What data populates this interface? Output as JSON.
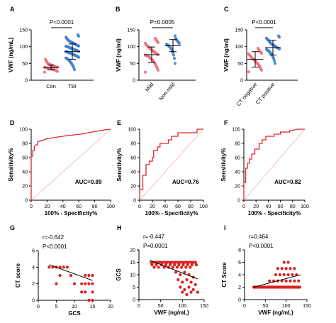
{
  "colors": {
    "con": "#f07080",
    "tbi": "#3f7fd0",
    "roc": "#e0262a",
    "reference": "#f1b0b0",
    "scatter": "#dd2020",
    "axis": "#000000",
    "mean_line": "#000000"
  },
  "chart_data": [
    {
      "panel": "A",
      "type": "scatter",
      "categories": [
        "Con",
        "TBI"
      ],
      "ylabel": "VWF (ng/mL)",
      "ylim": [
        0,
        150
      ],
      "yticks": [
        0,
        50,
        100,
        150
      ],
      "pvalue": "P<0.0001",
      "groups": [
        {
          "category": "Con",
          "mean": 38,
          "sd": 7,
          "values": [
            24,
            26,
            28,
            29,
            30,
            31,
            31,
            32,
            33,
            33,
            34,
            34,
            35,
            35,
            36,
            36,
            37,
            37,
            38,
            38,
            39,
            39,
            40,
            40,
            41,
            42,
            42,
            43,
            44,
            45,
            46,
            47,
            48,
            50,
            52,
            55,
            58,
            62
          ]
        },
        {
          "category": "TBI",
          "mean": 85,
          "sd": 23,
          "values": [
            32,
            38,
            42,
            46,
            50,
            52,
            55,
            58,
            60,
            62,
            63,
            65,
            66,
            68,
            70,
            71,
            72,
            73,
            74,
            75,
            76,
            77,
            78,
            79,
            80,
            80,
            81,
            82,
            83,
            84,
            85,
            85,
            86,
            87,
            88,
            89,
            90,
            90,
            91,
            92,
            93,
            94,
            95,
            95,
            96,
            97,
            98,
            99,
            100,
            100,
            101,
            102,
            103,
            104,
            105,
            106,
            107,
            108,
            110,
            111,
            112,
            113,
            114,
            115,
            116,
            118,
            120,
            122,
            125,
            128,
            131,
            135
          ]
        }
      ]
    },
    {
      "panel": "B",
      "type": "scatter",
      "categories": [
        "Mild",
        "Non-mild"
      ],
      "ylabel": "VWF (ng/ml)",
      "ylim": [
        0,
        150
      ],
      "yticks": [
        0,
        50,
        100,
        150
      ],
      "pvalue": "P=0.0005",
      "groups": [
        {
          "category": "Mild",
          "mean": 76,
          "sd": 23,
          "values": [
            24,
            30,
            35,
            40,
            44,
            48,
            52,
            55,
            58,
            60,
            62,
            64,
            66,
            68,
            70,
            71,
            72,
            73,
            74,
            75,
            76,
            78,
            79,
            80,
            82,
            84,
            85,
            86,
            88,
            90,
            92,
            94,
            96,
            98,
            100,
            102,
            104,
            106,
            110,
            112,
            115,
            118,
            120,
            125
          ]
        },
        {
          "category": "Non-mild",
          "mean": 103,
          "sd": 18,
          "values": [
            50,
            65,
            75,
            82,
            88,
            92,
            95,
            98,
            100,
            102,
            104,
            105,
            107,
            110,
            112,
            115,
            118,
            120,
            125,
            132
          ]
        }
      ]
    },
    {
      "panel": "C",
      "type": "scatter",
      "categories": [
        "CT negative",
        "CT positive"
      ],
      "ylabel": "VWF (ng/ml)",
      "ylim": [
        0,
        150
      ],
      "yticks": [
        0,
        50,
        100,
        150
      ],
      "pvalue": "P<0.0001",
      "groups": [
        {
          "category": "CT negative",
          "mean": 62,
          "sd": 23,
          "values": [
            25,
            30,
            34,
            38,
            42,
            45,
            48,
            50,
            53,
            55,
            57,
            60,
            62,
            63,
            65,
            67,
            70,
            72,
            75,
            78,
            80,
            83,
            85,
            88,
            90,
            95
          ]
        },
        {
          "category": "CT positive",
          "mean": 97,
          "sd": 22,
          "values": [
            50,
            58,
            65,
            70,
            74,
            78,
            80,
            83,
            85,
            87,
            88,
            90,
            92,
            93,
            95,
            96,
            97,
            98,
            100,
            101,
            103,
            104,
            105,
            107,
            108,
            110,
            112,
            115,
            118,
            120,
            122,
            125,
            128,
            132
          ]
        }
      ]
    },
    {
      "panel": "D",
      "type": "line",
      "xlabel": "100% - Specificity%",
      "ylabel": "Sensitivity%",
      "xlim": [
        0,
        100
      ],
      "ylim": [
        0,
        100
      ],
      "xticks": [
        0,
        20,
        40,
        60,
        80,
        100
      ],
      "yticks": [
        0,
        20,
        40,
        60,
        80,
        100
      ],
      "auc": "AUC=0.89",
      "x": [
        0,
        0,
        2,
        2,
        4,
        4,
        6,
        8,
        8,
        12,
        16,
        18,
        22,
        28,
        34,
        40,
        46,
        54,
        62,
        72,
        82,
        92,
        100
      ],
      "y": [
        0,
        62,
        62,
        70,
        70,
        76,
        78,
        78,
        82,
        84,
        85,
        86,
        87,
        88,
        89,
        90,
        91,
        92,
        93,
        95,
        97,
        99,
        100
      ]
    },
    {
      "panel": "E",
      "type": "line",
      "xlabel": "100% - Specificity%",
      "ylabel": "Sensitivity%",
      "xlim": [
        0,
        100
      ],
      "ylim": [
        0,
        100
      ],
      "xticks": [
        0,
        20,
        40,
        60,
        80,
        100
      ],
      "yticks": [
        0,
        20,
        40,
        60,
        80,
        100
      ],
      "auc": "AUC=0.76",
      "x": [
        0,
        0,
        5,
        5,
        10,
        10,
        15,
        15,
        20,
        20,
        22,
        22,
        28,
        28,
        32,
        32,
        45,
        45,
        50,
        50,
        60,
        60,
        90,
        90,
        100
      ],
      "y": [
        0,
        15,
        15,
        35,
        35,
        50,
        50,
        55,
        55,
        60,
        60,
        70,
        70,
        75,
        75,
        80,
        80,
        85,
        85,
        90,
        90,
        95,
        95,
        100,
        100
      ]
    },
    {
      "panel": "F",
      "type": "line",
      "xlabel": "100% - Specificity%",
      "ylabel": "Sensitivity%",
      "xlim": [
        0,
        100
      ],
      "ylim": [
        0,
        100
      ],
      "xticks": [
        0,
        20,
        40,
        60,
        80,
        100
      ],
      "yticks": [
        0,
        20,
        40,
        60,
        80,
        100
      ],
      "auc": "AUC=0.82",
      "x": [
        0,
        0,
        3,
        3,
        6,
        6,
        9,
        9,
        13,
        13,
        18,
        18,
        25,
        25,
        30,
        30,
        36,
        36,
        50,
        50,
        60,
        60,
        75,
        75,
        90,
        100
      ],
      "y": [
        0,
        25,
        25,
        45,
        45,
        52,
        52,
        58,
        58,
        65,
        65,
        72,
        72,
        80,
        80,
        85,
        85,
        90,
        90,
        93,
        93,
        96,
        96,
        98,
        100,
        100
      ]
    },
    {
      "panel": "G",
      "type": "scatter",
      "xlabel": "GCS",
      "ylabel": "CT score",
      "xlim": [
        0,
        20
      ],
      "ylim": [
        0,
        6
      ],
      "xticks": [
        0,
        5,
        10,
        15,
        20
      ],
      "yticks": [
        0,
        2,
        4,
        6
      ],
      "r": "r=-0.642",
      "pvalue": "P<0.0001",
      "fit": {
        "x": [
          3,
          15
        ],
        "y": [
          4.3,
          2.4
        ]
      },
      "x": [
        3,
        4,
        5,
        6,
        7,
        8,
        6,
        5,
        9,
        10,
        12,
        13,
        14,
        15,
        13,
        14,
        15,
        12,
        13,
        14,
        15,
        15
      ],
      "y": [
        4,
        4,
        4,
        4,
        4,
        4,
        3,
        2,
        3,
        2,
        2,
        3,
        3,
        2,
        2,
        2,
        1,
        1,
        1,
        0,
        0,
        3
      ]
    },
    {
      "panel": "H",
      "type": "scatter",
      "xlabel": "VWF (ng/mL)",
      "ylabel": "GCS",
      "xlim": [
        0,
        150
      ],
      "ylim": [
        0,
        20
      ],
      "xticks": [
        0,
        50,
        100,
        150
      ],
      "yticks": [
        0,
        5,
        10,
        15,
        20
      ],
      "r": "r=-0.447",
      "pvalue": "P=0.0001",
      "fit": {
        "x": [
          25,
          135
        ],
        "y": [
          15.8,
          8.3
        ]
      },
      "x": [
        28,
        32,
        38,
        42,
        46,
        50,
        55,
        60,
        65,
        70,
        75,
        80,
        85,
        90,
        95,
        100,
        105,
        110,
        115,
        120,
        125,
        130,
        30,
        40,
        52,
        62,
        72,
        82,
        92,
        102,
        112,
        122,
        132,
        35,
        45,
        58,
        68,
        78,
        88,
        98,
        108,
        118,
        85,
        95,
        105,
        115,
        125,
        90,
        100,
        110,
        120,
        130,
        95,
        105,
        115,
        125,
        135,
        100,
        110,
        120
      ],
      "y": [
        15,
        15,
        15,
        15,
        15,
        15,
        15,
        15,
        15,
        15,
        15,
        15,
        15,
        15,
        15,
        15,
        15,
        15,
        15,
        15,
        15,
        15,
        14,
        14,
        14,
        14,
        14,
        14,
        14,
        14,
        14,
        14,
        14,
        13,
        13,
        13,
        13,
        13,
        13,
        13,
        13,
        13,
        11,
        10,
        11,
        10,
        9,
        8,
        7,
        8,
        7,
        6,
        5,
        4,
        5,
        4,
        3,
        3,
        2,
        3
      ]
    },
    {
      "panel": "I",
      "type": "scatter",
      "xlabel": "VWF (ng/mL)",
      "ylabel": "CT Score",
      "xlim": [
        0,
        150
      ],
      "ylim": [
        0,
        8
      ],
      "xticks": [
        0,
        50,
        100,
        150
      ],
      "yticks": [
        0,
        2,
        4,
        6,
        8
      ],
      "r": "r=0.464",
      "pvalue": "P<0.0001",
      "fit": {
        "x": [
          22,
          135
        ],
        "y": [
          2.0,
          4.0
        ]
      },
      "x": [
        22,
        28,
        34,
        40,
        46,
        52,
        58,
        64,
        70,
        76,
        82,
        88,
        94,
        100,
        106,
        112,
        118,
        124,
        130,
        25,
        31,
        37,
        43,
        49,
        55,
        61,
        67,
        73,
        79,
        85,
        91,
        97,
        103,
        109,
        115,
        121,
        127,
        133,
        60,
        70,
        80,
        90,
        100,
        110,
        120,
        130,
        75,
        85,
        95,
        105,
        115,
        125,
        80,
        90,
        100,
        110,
        120,
        95,
        105
      ],
      "y": [
        2,
        2,
        2,
        2,
        2,
        2,
        2,
        2,
        2,
        2,
        2,
        2,
        2,
        2,
        2,
        2,
        2,
        2,
        2,
        2,
        2,
        2,
        2,
        2,
        2,
        2,
        2,
        2,
        2,
        2,
        2,
        2,
        2,
        2,
        2,
        2,
        2,
        2,
        3,
        3,
        3,
        3,
        3,
        3,
        3,
        3,
        4,
        4,
        4,
        4,
        4,
        4,
        5,
        5,
        5,
        5,
        5,
        6,
        6
      ]
    }
  ]
}
